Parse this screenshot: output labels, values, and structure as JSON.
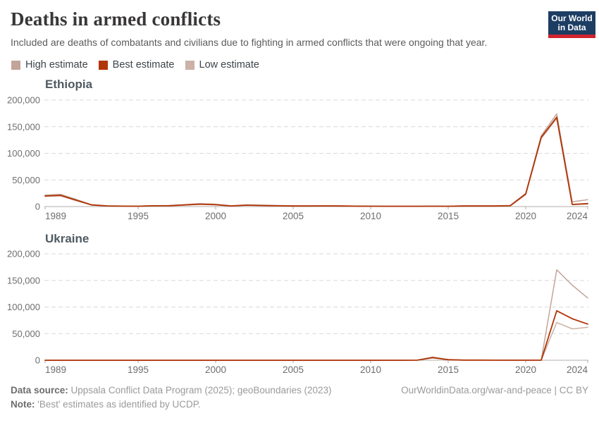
{
  "header": {
    "title": "Deaths in armed conflicts",
    "subtitle": "Included are deaths of combatants and civilians due to fighting in armed conflicts that were ongoing that year.",
    "logo": {
      "line1": "Our World",
      "line2": "in Data",
      "bg_color": "#1d3d63",
      "bar_color": "#d0232e"
    }
  },
  "legend": {
    "items": [
      {
        "label": "High estimate",
        "color": "#c3a49a"
      },
      {
        "label": "Best estimate",
        "color": "#b13507"
      },
      {
        "label": "Low estimate",
        "color": "#cbb1a6"
      }
    ]
  },
  "footer": {
    "sources_label": "Data source:",
    "sources_text": " Uppsala Conflict Data Program (2025); geoBoundaries (2023)",
    "note_label": "Note:",
    "note_text": " 'Best' estimates as identified by UCDP.",
    "right_text": "OurWorldinData.org/war-and-peace | CC BY"
  },
  "chart_data": [
    {
      "id": "ethiopia",
      "type": "line",
      "title": "Ethiopia",
      "xlabel": "",
      "ylabel": "",
      "ylim": [
        0,
        200000
      ],
      "grid": "dashed-horizontal",
      "legend_position": "top",
      "xticks": [
        1989,
        1995,
        2000,
        2005,
        2010,
        2015,
        2020,
        2024
      ],
      "yticks": [
        {
          "value": 0,
          "label": "0"
        },
        {
          "value": 50000,
          "label": "50,000"
        },
        {
          "value": 100000,
          "label": "100,000"
        },
        {
          "value": 150000,
          "label": "150,000"
        },
        {
          "value": 200000,
          "label": "200,000"
        }
      ],
      "x": [
        1989,
        1990,
        1991,
        1992,
        1993,
        1994,
        1995,
        1996,
        1997,
        1998,
        1999,
        2000,
        2001,
        2002,
        2003,
        2004,
        2005,
        2006,
        2007,
        2008,
        2009,
        2010,
        2011,
        2012,
        2013,
        2014,
        2015,
        2016,
        2017,
        2018,
        2019,
        2020,
        2021,
        2022,
        2023,
        2024
      ],
      "series": [
        {
          "name": "High estimate",
          "color": "#c3a49a",
          "values": [
            21500,
            23000,
            13500,
            3600,
            1500,
            1000,
            800,
            1800,
            2000,
            3600,
            5500,
            4500,
            1600,
            3200,
            2600,
            2000,
            1500,
            1400,
            1600,
            1400,
            1100,
            1000,
            800,
            800,
            800,
            900,
            800,
            1400,
            1400,
            1500,
            2100,
            25000,
            133000,
            174000,
            9000,
            13000
          ]
        },
        {
          "name": "Low estimate",
          "color": "#cbb1a6",
          "values": [
            19000,
            20000,
            11000,
            2800,
            1100,
            700,
            500,
            1400,
            1500,
            2800,
            4200,
            3200,
            1100,
            2400,
            1800,
            1400,
            1000,
            900,
            1100,
            900,
            700,
            600,
            450,
            450,
            450,
            550,
            450,
            900,
            900,
            1000,
            1400,
            22500,
            128000,
            165000,
            3500,
            4800
          ]
        },
        {
          "name": "Best estimate",
          "color": "#b13507",
          "values": [
            20000,
            21000,
            12000,
            3000,
            1200,
            800,
            600,
            1500,
            1600,
            3000,
            4500,
            3500,
            1200,
            2600,
            2000,
            1500,
            1100,
            1000,
            1200,
            1000,
            800,
            700,
            500,
            500,
            500,
            600,
            500,
            1000,
            1000,
            1100,
            1500,
            23500,
            130000,
            168000,
            4000,
            5500
          ]
        }
      ]
    },
    {
      "id": "ukraine",
      "type": "line",
      "title": "Ukraine",
      "xlabel": "",
      "ylabel": "",
      "ylim": [
        0,
        200000
      ],
      "grid": "dashed-horizontal",
      "legend_position": "top",
      "xticks": [
        1989,
        1995,
        2000,
        2005,
        2010,
        2015,
        2020,
        2024
      ],
      "yticks": [
        {
          "value": 0,
          "label": "0"
        },
        {
          "value": 50000,
          "label": "50,000"
        },
        {
          "value": 100000,
          "label": "100,000"
        },
        {
          "value": 150000,
          "label": "150,000"
        },
        {
          "value": 200000,
          "label": "200,000"
        }
      ],
      "x": [
        1989,
        1990,
        1991,
        1992,
        1993,
        1994,
        1995,
        1996,
        1997,
        1998,
        1999,
        2000,
        2001,
        2002,
        2003,
        2004,
        2005,
        2006,
        2007,
        2008,
        2009,
        2010,
        2011,
        2012,
        2013,
        2014,
        2015,
        2016,
        2017,
        2018,
        2019,
        2020,
        2021,
        2022,
        2023,
        2024
      ],
      "series": [
        {
          "name": "High estimate",
          "color": "#c3a49a",
          "values": [
            0,
            0,
            0,
            0,
            0,
            0,
            0,
            0,
            0,
            0,
            0,
            0,
            0,
            0,
            0,
            0,
            0,
            0,
            0,
            0,
            0,
            0,
            0,
            0,
            150,
            6000,
            1300,
            400,
            320,
            200,
            160,
            130,
            200,
            170000,
            141000,
            117000
          ]
        },
        {
          "name": "Low estimate",
          "color": "#cbb1a6",
          "values": [
            0,
            0,
            0,
            0,
            0,
            0,
            0,
            0,
            0,
            0,
            0,
            0,
            0,
            0,
            0,
            0,
            0,
            0,
            0,
            0,
            0,
            0,
            0,
            0,
            80,
            4400,
            900,
            280,
            230,
            140,
            110,
            90,
            130,
            71000,
            59000,
            62000
          ]
        },
        {
          "name": "Best estimate",
          "color": "#b13507",
          "values": [
            0,
            0,
            0,
            0,
            0,
            0,
            0,
            0,
            0,
            0,
            0,
            0,
            0,
            0,
            0,
            0,
            0,
            0,
            0,
            0,
            0,
            0,
            0,
            0,
            100,
            5000,
            1000,
            300,
            250,
            150,
            120,
            100,
            150,
            93000,
            78000,
            68000
          ]
        }
      ]
    }
  ]
}
